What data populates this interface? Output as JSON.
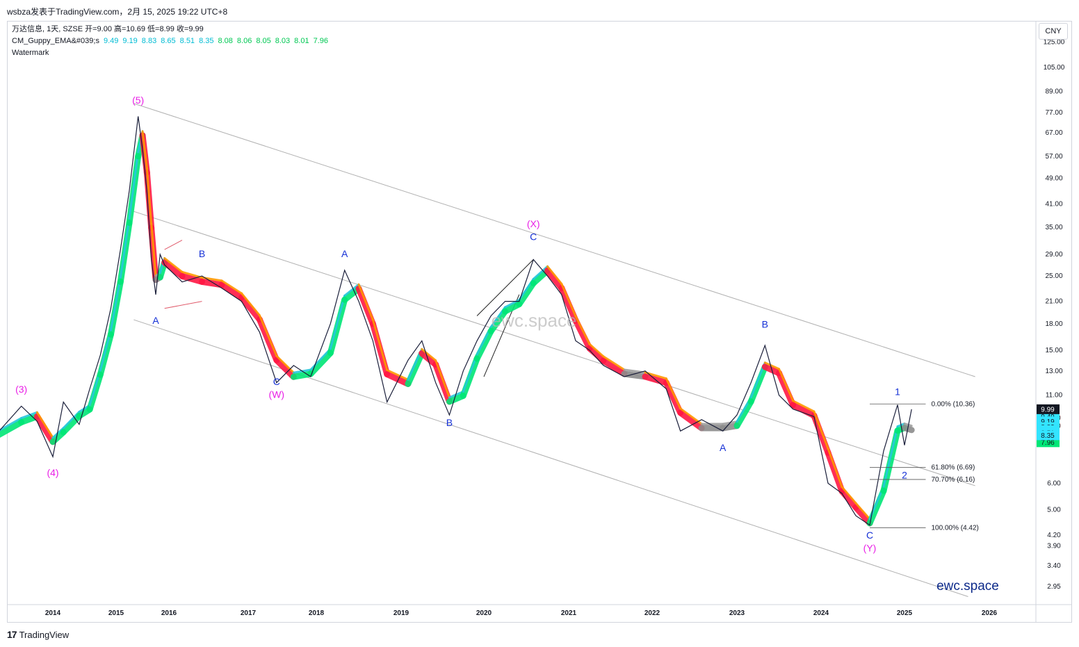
{
  "header": {
    "publish_line": "wsbza发表于TradingView.com，2月 15, 2025 19:22 UTC+8"
  },
  "legend": {
    "symbol_line": "万达信息, 1天, SZSE  开=9.00  高=10.69  低=8.99  收=9.99",
    "guppy_name": "CM_Guppy_EMA&#039;s",
    "guppy_values": [
      "9.49",
      "9.19",
      "8.83",
      "8.65",
      "8.51",
      "8.35",
      "8.08",
      "8.06",
      "8.05",
      "8.03",
      "8.01",
      "7.96"
    ],
    "guppy_value_colors": [
      "#00bcd4",
      "#00bcd4",
      "#00bcd4",
      "#00bcd4",
      "#00bcd4",
      "#00bcd4",
      "#00c853",
      "#00c853",
      "#00c853",
      "#00c853",
      "#00c853",
      "#00c853"
    ],
    "watermark_name": "Watermark"
  },
  "currency_button": "CNY",
  "watermark_text": "ewc.space",
  "brand_text": "ewc.space",
  "footer": {
    "logo_glyph": "17",
    "brand": "TradingView"
  },
  "colors": {
    "fast_up": "#26c6da",
    "slow_up": "#00e676",
    "slow_down": "#ff1744",
    "fast_down": "#ff9800",
    "neutral": "#8c8c8c",
    "wave_primary": "#e91ee6",
    "wave_minor": "#1530d6",
    "channel": "#b0b0b0",
    "last_price_bg": "#131722",
    "fast_label_bg": "#33e4ff",
    "slow_label_bg": "#00e676"
  },
  "chart_data": {
    "type": "line",
    "scale": "log",
    "title": "万达信息, 1天, SZSE",
    "x_ticks": [
      "2014",
      "2015",
      "2016",
      "2017",
      "2018",
      "2019",
      "2020",
      "2021",
      "2022",
      "2023",
      "2024",
      "2025",
      "2026"
    ],
    "y_ticks": [
      "125.00",
      "105.00",
      "89.00",
      "77.00",
      "67.00",
      "57.00",
      "49.00",
      "41.00",
      "35.00",
      "29.00",
      "25.00",
      "21.00",
      "18.00",
      "15.00",
      "13.00",
      "11.00",
      "9.40",
      "8.90",
      "6.00",
      "5.00",
      "4.20",
      "3.90",
      "3.40",
      "2.95"
    ],
    "price_series": {
      "name": "",
      "points": [
        [
          "2013-06",
          8.5
        ],
        [
          "2013-09",
          10.2
        ],
        [
          "2013-11",
          9.2
        ],
        [
          "2014-01",
          7.2
        ],
        [
          "2014-03",
          10.5
        ],
        [
          "2014-06",
          9.0
        ],
        [
          "2014-08",
          11.5
        ],
        [
          "2014-10",
          14.5
        ],
        [
          "2014-12",
          20.0
        ],
        [
          "2015-02",
          30.0
        ],
        [
          "2015-04",
          45.0
        ],
        [
          "2015-06",
          75.0
        ],
        [
          "2015-07",
          60.0
        ],
        [
          "2015-08",
          45.0
        ],
        [
          "2015-09",
          28.0
        ],
        [
          "2015-10",
          22.0
        ],
        [
          "2015-11",
          29.0
        ],
        [
          "2015-12",
          27.0
        ],
        [
          "2016-03",
          24.0
        ],
        [
          "2016-06",
          25.0
        ],
        [
          "2016-09",
          23.0
        ],
        [
          "2016-12",
          21.0
        ],
        [
          "2017-03",
          17.0
        ],
        [
          "2017-06",
          12.0
        ],
        [
          "2017-09",
          13.5
        ],
        [
          "2017-12",
          12.5
        ],
        [
          "2018-03",
          18.0
        ],
        [
          "2018-05",
          26.0
        ],
        [
          "2018-07",
          21.0
        ],
        [
          "2018-09",
          16.0
        ],
        [
          "2018-11",
          10.5
        ],
        [
          "2019-02",
          14.0
        ],
        [
          "2019-04",
          16.0
        ],
        [
          "2019-06",
          12.0
        ],
        [
          "2019-08",
          9.6
        ],
        [
          "2019-10",
          13.0
        ],
        [
          "2019-12",
          16.0
        ],
        [
          "2020-02",
          19.0
        ],
        [
          "2020-04",
          21.0
        ],
        [
          "2020-06",
          21.0
        ],
        [
          "2020-08",
          28.0
        ],
        [
          "2020-10",
          25.0
        ],
        [
          "2020-12",
          22.0
        ],
        [
          "2021-02",
          16.0
        ],
        [
          "2021-04",
          15.0
        ],
        [
          "2021-06",
          13.5
        ],
        [
          "2021-09",
          12.5
        ],
        [
          "2021-12",
          13.0
        ],
        [
          "2022-03",
          11.5
        ],
        [
          "2022-05",
          8.6
        ],
        [
          "2022-08",
          9.3
        ],
        [
          "2022-11",
          8.6
        ],
        [
          "2023-01",
          9.6
        ],
        [
          "2023-03",
          12.0
        ],
        [
          "2023-05",
          15.5
        ],
        [
          "2023-07",
          11.0
        ],
        [
          "2023-09",
          10.0
        ],
        [
          "2023-12",
          9.5
        ],
        [
          "2024-02",
          6.0
        ],
        [
          "2024-04",
          5.6
        ],
        [
          "2024-06",
          4.8
        ],
        [
          "2024-08",
          4.5
        ],
        [
          "2024-10",
          7.5
        ],
        [
          "2024-12",
          10.3
        ],
        [
          "2025-01",
          7.8
        ],
        [
          "2025-02",
          9.99
        ]
      ]
    },
    "guppy_fast": {
      "name": "",
      "values": [
        9.49,
        9.19,
        8.83,
        8.65,
        8.51,
        8.35
      ]
    },
    "guppy_slow": {
      "name": "",
      "values": [
        8.08,
        8.06,
        8.05,
        8.03,
        8.01,
        7.96
      ]
    },
    "last_price": "9.99",
    "waves": [
      {
        "label": "(3)",
        "date": "2013-09",
        "price": 11.2,
        "degree": "primary"
      },
      {
        "label": "(4)",
        "date": "2014-01",
        "price": 6.3,
        "degree": "primary"
      },
      {
        "label": "(5)",
        "date": "2015-06",
        "price": 82.0,
        "degree": "primary"
      },
      {
        "label": "A",
        "date": "2015-10",
        "price": 18.0,
        "degree": "minor"
      },
      {
        "label": "B",
        "date": "2016-06",
        "price": 28.5,
        "degree": "minor"
      },
      {
        "label": "C",
        "date": "2017-06",
        "price": 11.8,
        "degree": "minor"
      },
      {
        "label": "(W)",
        "date": "2017-06",
        "price": 10.8,
        "degree": "primary"
      },
      {
        "label": "A",
        "date": "2018-05",
        "price": 28.5,
        "degree": "minor"
      },
      {
        "label": "B",
        "date": "2019-08",
        "price": 8.9,
        "degree": "minor"
      },
      {
        "label": "C",
        "date": "2020-08",
        "price": 32.0,
        "degree": "minor"
      },
      {
        "label": "(X)",
        "date": "2020-08",
        "price": 35.0,
        "degree": "primary"
      },
      {
        "label": "A",
        "date": "2022-11",
        "price": 7.5,
        "degree": "minor"
      },
      {
        "label": "B",
        "date": "2023-05",
        "price": 17.5,
        "degree": "minor"
      },
      {
        "label": "C",
        "date": "2024-08",
        "price": 4.1,
        "degree": "minor"
      },
      {
        "label": "(Y)",
        "date": "2024-08",
        "price": 3.75,
        "degree": "primary"
      },
      {
        "label": "1",
        "date": "2024-12",
        "price": 11.0,
        "degree": "minor"
      },
      {
        "label": "2",
        "date": "2025-01",
        "price": 6.2,
        "degree": "minor"
      }
    ],
    "fibonacci": {
      "start_date": "2024-08",
      "end_date": "2025-04",
      "levels": [
        {
          "label": "0.00% (10.36)",
          "price": 10.36
        },
        {
          "label": "61.80% (6.69)",
          "price": 6.69
        },
        {
          "label": "70.70% (6.16)",
          "price": 6.16
        },
        {
          "label": "100.00% (4.42)",
          "price": 4.42
        }
      ]
    },
    "channel_lines": [
      [
        [
          "2015-05",
          82.0
        ],
        [
          "2025-11",
          12.5
        ]
      ],
      [
        [
          "2015-05",
          39.0
        ],
        [
          "2025-11",
          5.9
        ]
      ],
      [
        [
          "2015-05",
          18.5
        ],
        [
          "2025-10",
          2.75
        ]
      ]
    ],
    "triangle_lines": [
      [
        [
          "2015-12",
          30.0
        ],
        [
          "2016-03",
          32.0
        ]
      ],
      [
        [
          "2015-12",
          20.0
        ],
        [
          "2016-06",
          21.0
        ]
      ],
      [
        [
          "2019-12",
          19.0
        ],
        [
          "2020-08",
          28.0
        ]
      ],
      [
        [
          "2020-01",
          12.5
        ],
        [
          "2020-06",
          22.0
        ]
      ]
    ]
  }
}
